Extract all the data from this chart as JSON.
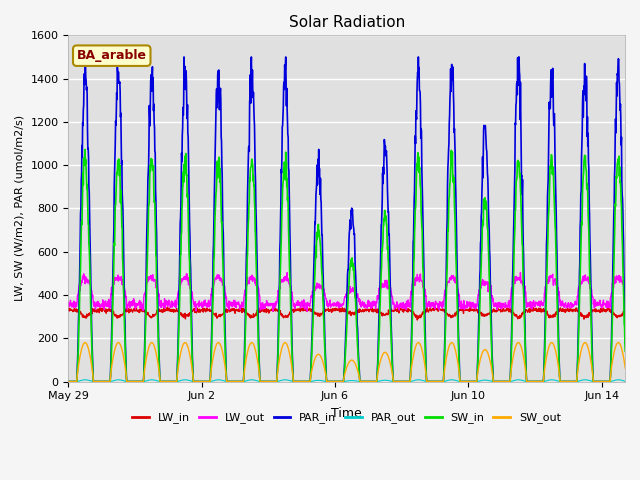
{
  "title": "Solar Radiation",
  "xlabel": "Time",
  "ylabel": "LW, SW (W/m2), PAR (umol/m2/s)",
  "ylim": [
    0,
    1600
  ],
  "site_label": "BA_arable",
  "n_days": 17,
  "points_per_day": 96,
  "series_colors": {
    "LW_in": "#dd0000",
    "LW_out": "#ff00ff",
    "PAR_in": "#0000dd",
    "PAR_out": "#00cccc",
    "SW_in": "#00dd00",
    "SW_out": "#ffaa00"
  },
  "legend_order": [
    "LW_in",
    "LW_out",
    "PAR_in",
    "PAR_out",
    "SW_in",
    "SW_out"
  ],
  "xtick_labels": [
    "May 29",
    "Jun 2",
    "Jun 6",
    "Jun 10",
    "Jun 14"
  ],
  "xtick_day_offsets": [
    0,
    4,
    8,
    12,
    16
  ],
  "background_color": "#e0e0e0",
  "grid_color": "#ffffff",
  "fig_bg": "#f5f5f5",
  "site_label_color": "#880000",
  "site_label_bg": "#ffffcc",
  "site_label_edge": "#aa8800"
}
